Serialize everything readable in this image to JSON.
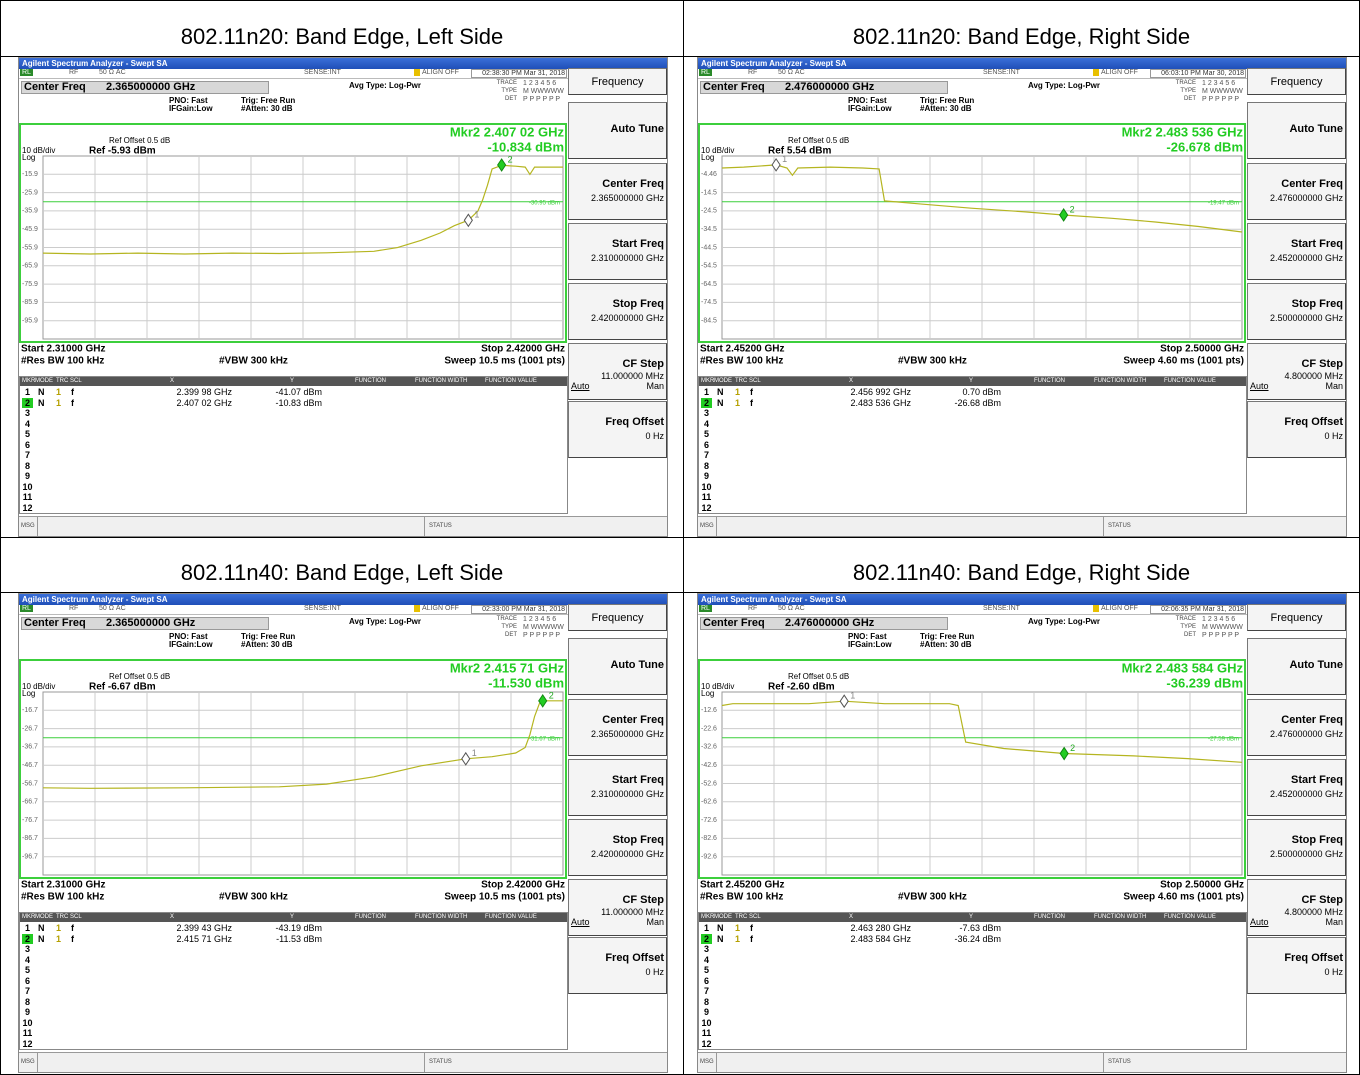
{
  "common": {
    "window_title": "Agilent Spectrum Analyzer - Swept SA",
    "rl": "RL",
    "rf": "RF",
    "impedance": "50 Ω  AC",
    "sense": "SENSE:INT",
    "align": "ALIGN OFF",
    "center_freq_label": "Center Freq",
    "pno": "PNO: Fast",
    "ifgain": "IFGain:Low",
    "trig": "Trig: Free Run",
    "atten": "#Atten: 30 dB",
    "avg_type": "Avg Type: Log-Pwr",
    "trace_label": "TRACE",
    "trace_nums": "1 2 3 4 5 6",
    "type_label": "TYPE",
    "type_value": "M WWWWW",
    "det_label": "DET",
    "det_value": "P P P P P P",
    "ref_offset": "Ref Offset 0.5 dB",
    "scale": "10 dB/div",
    "log": "Log",
    "res_bw": "#Res BW 100 kHz",
    "vbw": "#VBW 300 kHz",
    "table_header": [
      "MKR",
      "MODE",
      "TRC",
      "SCL",
      "X",
      "Y",
      "FUNCTION",
      "FUNCTION WIDTH",
      "FUNCTION VALUE"
    ],
    "empty_rows": [
      "3",
      "4",
      "5",
      "6",
      "7",
      "8",
      "9",
      "10",
      "11",
      "12"
    ],
    "msg": "MSG",
    "status": "STATUS",
    "softkeys": {
      "menu": "Frequency",
      "auto_tune": "Auto Tune",
      "center": "Center Freq",
      "start": "Start Freq",
      "stop": "Stop Freq",
      "cf_step": "CF Step",
      "auto": "Auto",
      "man": "Man",
      "freq_offset": "Freq Offset",
      "freq_offset_value": "0 Hz"
    }
  },
  "cells": [
    {
      "caption": "802.11n20: Band Edge, Left Side",
      "time": "02:38:30 PM Mar 31, 2018",
      "center_freq": "2.365000000 GHz",
      "start_freq": "2.310000000 GHz",
      "stop_freq": "2.420000000 GHz",
      "cf_step": "11.000000 MHz",
      "ref": "Ref -5.93 dBm",
      "marker_readout": [
        "Mkr2 2.407 02 GHz",
        "-10.834 dBm"
      ],
      "xlim": [
        2.31,
        2.42
      ],
      "ylim": [
        -105.93,
        -5.93
      ],
      "yticks": [
        {
          "value": -15.93,
          "label": "-15.9"
        },
        {
          "value": -25.93,
          "label": "-25.9"
        },
        {
          "value": -35.93,
          "label": "-35.9"
        },
        {
          "value": -45.93,
          "label": "-45.9"
        },
        {
          "value": -55.93,
          "label": "-55.9"
        },
        {
          "value": -65.93,
          "label": "-65.9"
        },
        {
          "value": -75.93,
          "label": "-75.9"
        },
        {
          "value": -85.93,
          "label": "-85.9"
        },
        {
          "value": -95.93,
          "label": "-95.9"
        }
      ],
      "display_line": {
        "value": -30.95,
        "label": "-30.95 dBm"
      },
      "trace": {
        "x": [
          2.31,
          2.32,
          2.33,
          2.34,
          2.35,
          2.36,
          2.37,
          2.38,
          2.385,
          2.39,
          2.394,
          2.397,
          2.39998,
          2.402,
          2.403,
          2.404,
          2.405,
          2.407,
          2.41,
          2.412,
          2.413,
          2.414,
          2.417,
          2.42
        ],
        "values": [
          -59,
          -59.5,
          -59,
          -59.5,
          -59,
          -59.2,
          -58.8,
          -58,
          -56,
          -52,
          -48,
          -44,
          -41,
          -36,
          -30,
          -22,
          -13,
          -11,
          -11.5,
          -12,
          -16,
          -12,
          -12,
          -12
        ]
      },
      "start": "Start 2.31000 GHz",
      "stop": "Stop 2.42000 GHz",
      "sweep": "Sweep  10.5 ms (1001 pts)",
      "markers": [
        {
          "num": "1",
          "mode": "N",
          "trc": "1",
          "scl": "f",
          "x": {
            "value": 2.39998,
            "label": "2.399 98 GHz"
          },
          "y": {
            "value": -41.07,
            "label": "-41.07 dBm"
          }
        },
        {
          "num": "2",
          "mode": "N",
          "trc": "1",
          "scl": "f",
          "x": {
            "value": 2.40702,
            "label": "2.407 02 GHz"
          },
          "y": {
            "value": -10.83,
            "label": "-10.83 dBm"
          }
        }
      ]
    },
    {
      "caption": "802.11n20: Band Edge, Right Side",
      "time": "06:03:10 PM Mar 30, 2018",
      "center_freq": "2.476000000 GHz",
      "start_freq": "2.452000000 GHz",
      "stop_freq": "2.500000000 GHz",
      "cf_step": "4.800000 MHz",
      "ref": "Ref 5.54 dBm",
      "marker_readout": [
        "Mkr2 2.483 536 GHz",
        "-26.678 dBm"
      ],
      "xlim": [
        2.452,
        2.5
      ],
      "ylim": [
        -94.46,
        5.54
      ],
      "yticks": [
        -4.46,
        {
          "value": -14.46,
          "label": "-14.5"
        },
        {
          "value": -24.46,
          "label": "-24.5"
        },
        {
          "value": -34.46,
          "label": "-34.5"
        },
        {
          "value": -44.46,
          "label": "-44.5"
        },
        {
          "value": -54.46,
          "label": "-54.5"
        },
        {
          "value": -64.46,
          "label": "-64.5"
        },
        {
          "value": -74.46,
          "label": "-74.5"
        },
        {
          "value": -84.46,
          "label": "-84.5"
        }
      ],
      "display_line": {
        "value": -19.47,
        "label": "-19.47 dBm"
      },
      "trace": {
        "x": [
          2.452,
          2.454,
          2.456992,
          2.458,
          2.4585,
          2.459,
          2.462,
          2.465,
          2.4665,
          2.467,
          2.47,
          2.475,
          2.48,
          2.4835,
          2.488,
          2.492,
          2.496,
          2.5
        ],
        "values": [
          -1,
          -0.5,
          0.7,
          -1,
          -5,
          -1,
          -0.5,
          -1,
          -1.5,
          -19,
          -20.5,
          -23,
          -25,
          -26.7,
          -28.5,
          -30.5,
          -33,
          -36
        ]
      },
      "start": "Start 2.45200 GHz",
      "stop": "Stop 2.50000 GHz",
      "sweep": "Sweep  4.60 ms (1001 pts)",
      "markers": [
        {
          "num": "1",
          "mode": "N",
          "trc": "1",
          "scl": "f",
          "x": {
            "value": 2.456992,
            "label": "2.456 992 GHz"
          },
          "y": {
            "value": 0.7,
            "label": "0.70 dBm"
          }
        },
        {
          "num": "2",
          "mode": "N",
          "trc": "1",
          "scl": "f",
          "x": {
            "value": 2.483536,
            "label": "2.483 536 GHz"
          },
          "y": {
            "value": -26.68,
            "label": "-26.68 dBm"
          }
        }
      ]
    },
    {
      "caption": "802.11n40: Band Edge, Left Side",
      "time": "02:33:00 PM Mar 31, 2018",
      "center_freq": "2.365000000 GHz",
      "start_freq": "2.310000000 GHz",
      "stop_freq": "2.420000000 GHz",
      "cf_step": "11.000000 MHz",
      "ref": "Ref -6.67 dBm",
      "marker_readout": [
        "Mkr2 2.415 71 GHz",
        "-11.530 dBm"
      ],
      "xlim": [
        2.31,
        2.42
      ],
      "ylim": [
        -106.67,
        -6.67
      ],
      "yticks": [
        {
          "value": -16.67,
          "label": "-16.7"
        },
        {
          "value": -26.67,
          "label": "-26.7"
        },
        {
          "value": -36.67,
          "label": "-36.7"
        },
        {
          "value": -46.67,
          "label": "-46.7"
        },
        {
          "value": -56.67,
          "label": "-56.7"
        },
        {
          "value": -66.67,
          "label": "-66.7"
        },
        {
          "value": -76.67,
          "label": "-76.7"
        },
        {
          "value": -86.67,
          "label": "-86.7"
        },
        {
          "value": -96.67,
          "label": "-96.7"
        }
      ],
      "display_line": {
        "value": -31.67,
        "label": "-31.67 dBm"
      },
      "trace": {
        "x": [
          2.31,
          2.32,
          2.34,
          2.36,
          2.37,
          2.38,
          2.39,
          2.39943,
          2.405,
          2.41,
          2.412,
          2.413,
          2.414,
          2.415,
          2.41571,
          2.42
        ],
        "values": [
          -59,
          -59.3,
          -59,
          -58.5,
          -57,
          -53,
          -47,
          -43.2,
          -42,
          -40,
          -37,
          -30,
          -20,
          -13,
          -11.5,
          -11.5
        ]
      },
      "start": "Start 2.31000 GHz",
      "stop": "Stop 2.42000 GHz",
      "sweep": "Sweep  10.5 ms (1001 pts)",
      "markers": [
        {
          "num": "1",
          "mode": "N",
          "trc": "1",
          "scl": "f",
          "x": {
            "value": 2.39943,
            "label": "2.399 43 GHz"
          },
          "y": {
            "value": -43.19,
            "label": "-43.19 dBm"
          }
        },
        {
          "num": "2",
          "mode": "N",
          "trc": "1",
          "scl": "f",
          "x": {
            "value": 2.41571,
            "label": "2.415 71 GHz"
          },
          "y": {
            "value": -11.53,
            "label": "-11.53 dBm"
          }
        }
      ]
    },
    {
      "caption": "802.11n40: Band Edge, Right Side",
      "time": "02:06:35 PM Mar 31, 2018",
      "center_freq": "2.476000000 GHz",
      "start_freq": "2.452000000 GHz",
      "stop_freq": "2.500000000 GHz",
      "cf_step": "4.800000 MHz",
      "ref": "Ref -2.60 dBm",
      "marker_readout": [
        "Mkr2 2.483 584 GHz",
        "-36.239 dBm"
      ],
      "xlim": [
        2.452,
        2.5
      ],
      "ylim": [
        -102.6,
        -2.6
      ],
      "yticks": [
        -12.6,
        -22.6,
        -32.6,
        -42.6,
        -52.6,
        -62.6,
        -72.6,
        -82.6,
        -92.6
      ],
      "display_line": {
        "value": -27.59,
        "label": "-27.59 dBm"
      },
      "trace": {
        "x": [
          2.452,
          2.453,
          2.46,
          2.46328,
          2.467,
          2.473,
          2.4738,
          2.4745,
          2.478,
          2.483584,
          2.49,
          2.495,
          2.5
        ],
        "values": [
          -10,
          -9,
          -9,
          -7.6,
          -9,
          -9,
          -10,
          -30,
          -33.5,
          -36.2,
          -37.5,
          -39,
          -41
        ]
      },
      "start": "Start 2.45200 GHz",
      "stop": "Stop 2.50000 GHz",
      "sweep": "Sweep  4.60 ms (1001 pts)",
      "markers": [
        {
          "num": "1",
          "mode": "N",
          "trc": "1",
          "scl": "f",
          "x": {
            "value": 2.46328,
            "label": "2.463 280 GHz"
          },
          "y": {
            "value": -7.63,
            "label": "-7.63 dBm"
          }
        },
        {
          "num": "2",
          "mode": "N",
          "trc": "1",
          "scl": "f",
          "x": {
            "value": 2.483584,
            "label": "2.483 584 GHz"
          },
          "y": {
            "value": -36.24,
            "label": "-36.24 dBm"
          }
        }
      ]
    }
  ]
}
